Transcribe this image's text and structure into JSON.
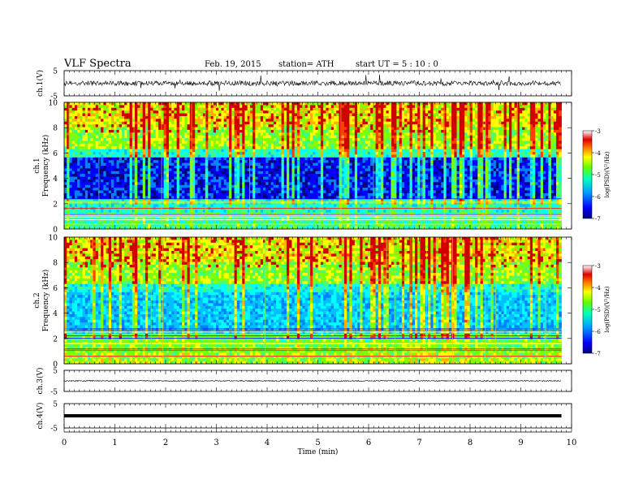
{
  "header": {
    "title": "VLF  Spectra",
    "date": "Feb. 19, 2015",
    "station": "station= ATH",
    "start": "start  UT  =   5  : 10 : 0"
  },
  "chart_data": {
    "type": "heatmap",
    "x_axis": {
      "label": "Time  (min)",
      "range": [
        0,
        10
      ],
      "ticks": [
        "0",
        "1",
        "2",
        "3",
        "4",
        "5",
        "6",
        "7",
        "8",
        "9",
        "10"
      ],
      "data_end": 9.8
    },
    "panels": [
      {
        "id": "ch1_wave",
        "type": "line",
        "ylabel": "ch.1(V)",
        "yticks": [
          "5",
          "-5"
        ],
        "ylim": [
          -5,
          5
        ],
        "level": 0
      },
      {
        "id": "ch1_spec",
        "type": "heatmap",
        "ylabel_channel": "ch.1",
        "ylabel": "Frequency  (kHz)",
        "yticks": [
          "10",
          "8",
          "6",
          "4",
          "2",
          "0"
        ],
        "ylim": [
          0,
          10
        ],
        "colorbar_label": "log(PSD)(V²/Hz)",
        "colorbar_ticks": [
          "-3",
          "-4",
          "-5",
          "-6",
          "-7"
        ],
        "colorbar_range": [
          -7,
          -3
        ]
      },
      {
        "id": "ch2_spec",
        "type": "heatmap",
        "ylabel_channel": "ch.2",
        "ylabel": "Frequency  (kHz)",
        "yticks": [
          "10",
          "8",
          "6",
          "4",
          "2",
          "0"
        ],
        "ylim": [
          0,
          10
        ],
        "colorbar_label": "log(PSD)(V²/Hz)",
        "colorbar_ticks": [
          "-3",
          "-4",
          "-5",
          "-6",
          "-7"
        ],
        "colorbar_range": [
          -7,
          -3
        ]
      },
      {
        "id": "ch3_wave",
        "type": "line",
        "ylabel": "ch.3(V)",
        "yticks": [
          "5",
          "-5"
        ],
        "ylim": [
          -5,
          5
        ],
        "level": 0
      },
      {
        "id": "ch4_wave",
        "type": "line",
        "ylabel": "ch.4(V)",
        "yticks": [
          "5",
          "-5"
        ],
        "ylim": [
          -5,
          5
        ],
        "level": 0
      }
    ],
    "colormap": [
      "#000080",
      "#0000ff",
      "#0080ff",
      "#00c0ff",
      "#00ffff",
      "#40ff80",
      "#80ff00",
      "#ffff00",
      "#ffb000",
      "#ff4000",
      "#d00000",
      "#ffffff"
    ]
  }
}
